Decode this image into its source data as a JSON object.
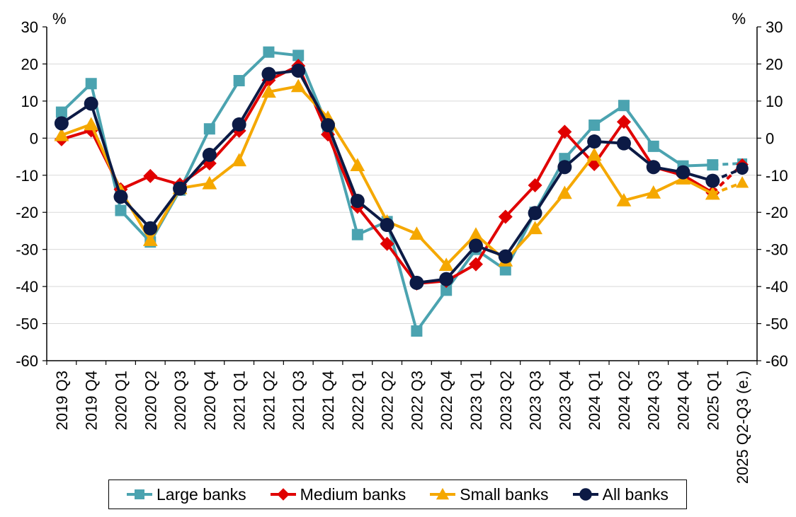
{
  "chart_data": {
    "type": "line",
    "unit_left": "%",
    "unit_right": "%",
    "categories": [
      "2019 Q3",
      "2019 Q4",
      "2020 Q1",
      "2020 Q2",
      "2020 Q3",
      "2020 Q4",
      "2021 Q1",
      "2021 Q2",
      "2021 Q3",
      "2021 Q4",
      "2022 Q1",
      "2022 Q2",
      "2022 Q3",
      "2022 Q4",
      "2023 Q1",
      "2023 Q2",
      "2023 Q3",
      "2023 Q4",
      "2024 Q1",
      "2024 Q2",
      "2024 Q3",
      "2024 Q4",
      "2025 Q1",
      "2025 Q2-Q3 (e.)"
    ],
    "ylim": [
      -60,
      30
    ],
    "yticks": [
      30,
      20,
      10,
      0,
      -10,
      -20,
      -30,
      -40,
      -50,
      -60
    ],
    "grid": "horizontal",
    "legend_position": "bottom",
    "estimate_category": "2025 Q2-Q3 (e.)",
    "series": [
      {
        "name": "Large banks",
        "color": "#4BA3B0",
        "marker": "square",
        "values": [
          7,
          14.7,
          -19.5,
          -28,
          -14,
          2.5,
          15.5,
          23.2,
          22.3,
          3,
          -26,
          -22.5,
          -52,
          -41,
          -30,
          -35.5,
          -20,
          -5.5,
          3.5,
          8.8,
          -2.2,
          -7.5,
          -7.2,
          -6.8
        ]
      },
      {
        "name": "Medium banks",
        "color": "#E00000",
        "marker": "diamond",
        "values": [
          -0.3,
          2.1,
          -13.8,
          -10.2,
          -12.5,
          -6.8,
          2,
          15.6,
          19.5,
          1,
          -18.5,
          -28.5,
          -39.2,
          -38.5,
          -34,
          -21.2,
          -12.7,
          1.7,
          -7,
          4.4,
          -7.8,
          -10,
          -14.7,
          -7.1
        ]
      },
      {
        "name": "Small banks",
        "color": "#F5A800",
        "marker": "triangle",
        "values": [
          0.8,
          3.7,
          -14.2,
          -27.5,
          -13.5,
          -12.2,
          -6,
          12.5,
          14,
          5.5,
          -7.3,
          -22.5,
          -25.8,
          -34.2,
          -26,
          -33,
          -24.3,
          -14.8,
          -4.5,
          -16.8,
          -14.7,
          -10.9,
          -15,
          -12
        ]
      },
      {
        "name": "All banks",
        "color": "#0C1A45",
        "marker": "circle",
        "values": [
          4,
          9.3,
          -15.8,
          -24.3,
          -13.6,
          -4.5,
          3.7,
          17.3,
          18.2,
          3.5,
          -16.9,
          -23.4,
          -39,
          -38,
          -29,
          -31.9,
          -20.2,
          -7.8,
          -0.9,
          -1.4,
          -7.8,
          -9.2,
          -11.5,
          -8.2
        ]
      }
    ]
  }
}
